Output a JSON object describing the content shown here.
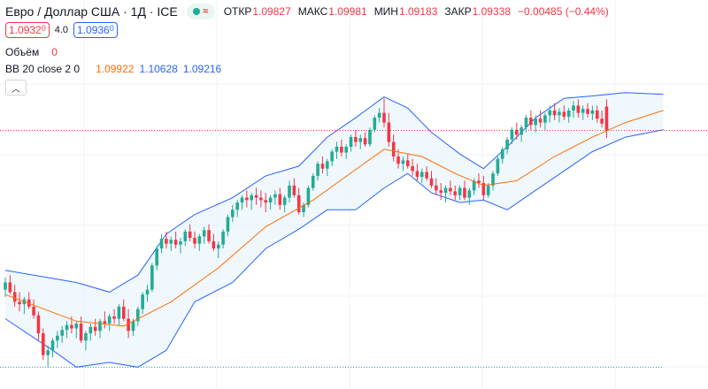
{
  "header": {
    "title": "Евро / Доллар США · 1Д · ICE",
    "live_icon": "wave-icon",
    "open_label": "ОТКР",
    "open": "1.09827",
    "high_label": "МАКС",
    "high": "1.09981",
    "low_label": "МИН",
    "low": "1.09183",
    "close_label": "ЗАКР",
    "close": "1.09338",
    "change": "−0.00485 (−0.44%)"
  },
  "trade": {
    "sell": "1.0932",
    "sell_sup": "0",
    "spread": "4.0",
    "buy": "1.0936",
    "buy_sup": "0"
  },
  "volume": {
    "label": "Объём",
    "value": "0"
  },
  "indicator": {
    "label": "BB 20 close 2 0",
    "basis": "1.09922",
    "upper": "1.10628",
    "lower": "1.09216"
  },
  "colors": {
    "up": "#22ab94",
    "down": "#f23645",
    "basis": "#ff6d00",
    "band": "#2962ff",
    "band_fill": "#e3f2fd",
    "grid": "#f0f3fa",
    "price_line": "#f23645",
    "low_line": "#22ab94"
  },
  "chart_data": {
    "type": "candlestick",
    "title": "Евро / Доллар США · 1Д · ICE",
    "ylim": [
      1.04,
      1.113
    ],
    "grid": true,
    "legend": "top-left",
    "reference_lines": {
      "last_close": 1.09338,
      "period_low": 1.0445
    },
    "ohlc": [
      [
        1.0605,
        1.063,
        1.059,
        1.062
      ],
      [
        1.062,
        1.0635,
        1.0595,
        1.06
      ],
      [
        1.06,
        1.0615,
        1.057,
        1.058
      ],
      [
        1.058,
        1.06,
        1.056,
        1.0575
      ],
      [
        1.0575,
        1.059,
        1.0555,
        1.0585
      ],
      [
        1.0585,
        1.06,
        1.0565,
        1.057
      ],
      [
        1.057,
        1.0585,
        1.0545,
        1.0552
      ],
      [
        1.0552,
        1.056,
        1.05,
        1.0515
      ],
      [
        1.0515,
        1.0525,
        1.046,
        1.047
      ],
      [
        1.047,
        1.049,
        1.0445,
        1.048
      ],
      [
        1.048,
        1.0505,
        1.0465,
        1.05
      ],
      [
        1.05,
        1.052,
        1.0485,
        1.051
      ],
      [
        1.051,
        1.053,
        1.0495,
        1.0522
      ],
      [
        1.0522,
        1.054,
        1.0505,
        1.0532
      ],
      [
        1.0532,
        1.055,
        1.0515,
        1.0525
      ],
      [
        1.0525,
        1.054,
        1.0505,
        1.0535
      ],
      [
        1.0535,
        1.055,
        1.0495,
        1.05
      ],
      [
        1.05,
        1.052,
        1.048,
        1.0515
      ],
      [
        1.0515,
        1.0535,
        1.05,
        1.0528
      ],
      [
        1.0528,
        1.0545,
        1.051,
        1.052
      ],
      [
        1.052,
        1.0545,
        1.0505,
        1.054
      ],
      [
        1.054,
        1.056,
        1.0525,
        1.0535
      ],
      [
        1.0535,
        1.0555,
        1.052,
        1.055
      ],
      [
        1.055,
        1.0565,
        1.0535,
        1.0545
      ],
      [
        1.0545,
        1.0575,
        1.053,
        1.057
      ],
      [
        1.057,
        1.0585,
        1.054,
        1.0545
      ],
      [
        1.0545,
        1.0565,
        1.0505,
        1.052
      ],
      [
        1.052,
        1.0545,
        1.051,
        1.054
      ],
      [
        1.054,
        1.057,
        1.053,
        1.0565
      ],
      [
        1.0565,
        1.06,
        1.0555,
        1.0595
      ],
      [
        1.0595,
        1.0615,
        1.058,
        1.0605
      ],
      [
        1.0605,
        1.066,
        1.06,
        1.0655
      ],
      [
        1.0655,
        1.0695,
        1.0645,
        1.069
      ],
      [
        1.069,
        1.072,
        1.068,
        1.071
      ],
      [
        1.071,
        1.0725,
        1.069,
        1.07
      ],
      [
        1.07,
        1.0715,
        1.0685,
        1.0708
      ],
      [
        1.0708,
        1.0725,
        1.069,
        1.0698
      ],
      [
        1.0698,
        1.0712,
        1.068,
        1.0705
      ],
      [
        1.0705,
        1.073,
        1.0695,
        1.0725
      ],
      [
        1.0725,
        1.074,
        1.0705,
        1.0712
      ],
      [
        1.0712,
        1.0725,
        1.069,
        1.07
      ],
      [
        1.07,
        1.072,
        1.0685,
        1.0715
      ],
      [
        1.0715,
        1.0735,
        1.07,
        1.0728
      ],
      [
        1.0728,
        1.074,
        1.07,
        1.0705
      ],
      [
        1.0705,
        1.072,
        1.0685,
        1.069
      ],
      [
        1.069,
        1.0705,
        1.067,
        1.0698
      ],
      [
        1.0698,
        1.073,
        1.069,
        1.0725
      ],
      [
        1.0725,
        1.076,
        1.0715,
        1.0755
      ],
      [
        1.0755,
        1.078,
        1.0745,
        1.077
      ],
      [
        1.077,
        1.079,
        1.0755,
        1.0785
      ],
      [
        1.0785,
        1.08,
        1.077,
        1.0795
      ],
      [
        1.0795,
        1.081,
        1.0775,
        1.079
      ],
      [
        1.079,
        1.0805,
        1.077,
        1.08
      ],
      [
        1.08,
        1.0815,
        1.078,
        1.0795
      ],
      [
        1.0795,
        1.081,
        1.0775,
        1.079
      ],
      [
        1.079,
        1.0805,
        1.0765,
        1.0785
      ],
      [
        1.0785,
        1.08,
        1.077,
        1.0795
      ],
      [
        1.0795,
        1.081,
        1.078,
        1.0802
      ],
      [
        1.0802,
        1.0815,
        1.077,
        1.078
      ],
      [
        1.078,
        1.08,
        1.0765,
        1.0795
      ],
      [
        1.0795,
        1.083,
        1.0785,
        1.082
      ],
      [
        1.082,
        1.0835,
        1.0795,
        1.08
      ],
      [
        1.08,
        1.0815,
        1.076,
        1.0765
      ],
      [
        1.0765,
        1.0785,
        1.0755,
        1.078
      ],
      [
        1.078,
        1.082,
        1.0775,
        1.0815
      ],
      [
        1.0815,
        1.0845,
        1.081,
        1.084
      ],
      [
        1.084,
        1.087,
        1.083,
        1.0865
      ],
      [
        1.0865,
        1.088,
        1.0845,
        1.0855
      ],
      [
        1.0855,
        1.0875,
        1.084,
        1.087
      ],
      [
        1.087,
        1.0895,
        1.086,
        1.089
      ],
      [
        1.089,
        1.091,
        1.0875,
        1.09
      ],
      [
        1.09,
        1.0915,
        1.088,
        1.0888
      ],
      [
        1.0888,
        1.0905,
        1.0875,
        1.09
      ],
      [
        1.09,
        1.0925,
        1.089,
        1.092
      ],
      [
        1.092,
        1.0935,
        1.09,
        1.091
      ],
      [
        1.091,
        1.0925,
        1.0895,
        1.0918
      ],
      [
        1.0918,
        1.093,
        1.09,
        1.0905
      ],
      [
        1.0905,
        1.094,
        1.09,
        1.0935
      ],
      [
        1.0935,
        1.0965,
        1.093,
        1.096
      ],
      [
        1.096,
        1.098,
        1.095,
        1.097
      ],
      [
        1.097,
        1.1,
        1.094,
        1.095
      ],
      [
        1.095,
        1.097,
        1.09,
        1.091
      ],
      [
        1.091,
        1.0925,
        1.087,
        1.088
      ],
      [
        1.088,
        1.0895,
        1.0855,
        1.0865
      ],
      [
        1.0865,
        1.088,
        1.085,
        1.0872
      ],
      [
        1.0872,
        1.0885,
        1.0855,
        1.086
      ],
      [
        1.086,
        1.0875,
        1.084,
        1.085
      ],
      [
        1.085,
        1.0865,
        1.083,
        1.0838
      ],
      [
        1.0838,
        1.0855,
        1.0825,
        1.0848
      ],
      [
        1.0848,
        1.086,
        1.083,
        1.0835
      ],
      [
        1.0835,
        1.085,
        1.0815,
        1.082
      ],
      [
        1.082,
        1.0835,
        1.08,
        1.081
      ],
      [
        1.081,
        1.0825,
        1.079,
        1.0805
      ],
      [
        1.0805,
        1.082,
        1.0785,
        1.0815
      ],
      [
        1.0815,
        1.083,
        1.08,
        1.0808
      ],
      [
        1.0808,
        1.082,
        1.079,
        1.08
      ],
      [
        1.08,
        1.082,
        1.079,
        1.0815
      ],
      [
        1.0815,
        1.083,
        1.079,
        1.0795
      ],
      [
        1.0795,
        1.0815,
        1.078,
        1.081
      ],
      [
        1.081,
        1.0835,
        1.08,
        1.083
      ],
      [
        1.083,
        1.0845,
        1.0815,
        1.0825
      ],
      [
        1.0825,
        1.084,
        1.079,
        1.08
      ],
      [
        1.08,
        1.0825,
        1.0795,
        1.082
      ],
      [
        1.082,
        1.085,
        1.081,
        1.0845
      ],
      [
        1.0845,
        1.088,
        1.084,
        1.0875
      ],
      [
        1.0875,
        1.09,
        1.0865,
        1.0895
      ],
      [
        1.0895,
        1.092,
        1.0885,
        1.0915
      ],
      [
        1.0915,
        1.094,
        1.0905,
        1.0935
      ],
      [
        1.0935,
        1.095,
        1.0915,
        1.0925
      ],
      [
        1.0925,
        1.0945,
        1.091,
        1.094
      ],
      [
        1.094,
        1.0965,
        1.093,
        1.096
      ],
      [
        1.096,
        1.0975,
        1.0935,
        1.0945
      ],
      [
        1.0945,
        1.0965,
        1.093,
        1.0958
      ],
      [
        1.0958,
        1.0975,
        1.094,
        1.095
      ],
      [
        1.095,
        1.097,
        1.0935,
        1.0965
      ],
      [
        1.0965,
        1.0985,
        1.095,
        1.0975
      ],
      [
        1.0975,
        1.099,
        1.0955,
        1.0965
      ],
      [
        1.0965,
        1.098,
        1.095,
        1.0972
      ],
      [
        1.0972,
        1.0985,
        1.0955,
        1.0962
      ],
      [
        1.0962,
        1.098,
        1.095,
        1.0975
      ],
      [
        1.0975,
        1.0995,
        1.096,
        1.0985
      ],
      [
        1.0985,
        1.0998,
        1.096,
        1.097
      ],
      [
        1.097,
        1.0985,
        1.0955,
        1.0978
      ],
      [
        1.0978,
        1.099,
        1.096,
        1.0968
      ],
      [
        1.0968,
        1.0985,
        1.0955,
        1.0975
      ],
      [
        1.0975,
        1.0985,
        1.095,
        1.0958
      ],
      [
        1.0958,
        1.0975,
        1.094,
        1.0948
      ],
      [
        1.0983,
        1.0998,
        1.0918,
        1.0934
      ]
    ],
    "basis": [
      [
        0,
        1.0595
      ],
      [
        15,
        1.054
      ],
      [
        25,
        1.053
      ],
      [
        35,
        1.058
      ],
      [
        45,
        1.065
      ],
      [
        55,
        1.0735
      ],
      [
        65,
        1.079
      ],
      [
        75,
        1.086
      ],
      [
        80,
        1.0895
      ],
      [
        88,
        1.088
      ],
      [
        95,
        1.0845
      ],
      [
        101,
        1.082
      ],
      [
        108,
        1.083
      ],
      [
        116,
        1.088
      ],
      [
        124,
        1.092
      ],
      [
        131,
        1.095
      ],
      [
        139,
        1.0975
      ]
    ],
    "upper": [
      [
        0,
        1.0645
      ],
      [
        15,
        1.062
      ],
      [
        22,
        1.06
      ],
      [
        28,
        1.0635
      ],
      [
        34,
        1.072
      ],
      [
        40,
        1.076
      ],
      [
        48,
        1.0795
      ],
      [
        55,
        1.084
      ],
      [
        62,
        1.086
      ],
      [
        68,
        1.092
      ],
      [
        74,
        1.096
      ],
      [
        80,
        1.1003
      ],
      [
        85,
        1.098
      ],
      [
        90,
        1.093
      ],
      [
        96,
        1.0885
      ],
      [
        101,
        1.0855
      ],
      [
        106,
        1.09
      ],
      [
        112,
        1.096
      ],
      [
        118,
        1.1
      ],
      [
        124,
        1.1005
      ],
      [
        131,
        1.1012
      ],
      [
        139,
        1.1008
      ]
    ],
    "lower": [
      [
        0,
        1.0545
      ],
      [
        10,
        1.048
      ],
      [
        15,
        1.0445
      ],
      [
        22,
        1.0455
      ],
      [
        28,
        1.0445
      ],
      [
        34,
        1.048
      ],
      [
        40,
        1.058
      ],
      [
        48,
        1.062
      ],
      [
        55,
        1.069
      ],
      [
        62,
        1.073
      ],
      [
        68,
        1.077
      ],
      [
        74,
        1.077
      ],
      [
        80,
        1.0815
      ],
      [
        85,
        1.0845
      ],
      [
        90,
        1.0805
      ],
      [
        96,
        1.0785
      ],
      [
        101,
        1.079
      ],
      [
        106,
        1.077
      ],
      [
        112,
        1.081
      ],
      [
        118,
        1.085
      ],
      [
        124,
        1.089
      ],
      [
        131,
        1.092
      ],
      [
        139,
        1.0935
      ]
    ]
  }
}
